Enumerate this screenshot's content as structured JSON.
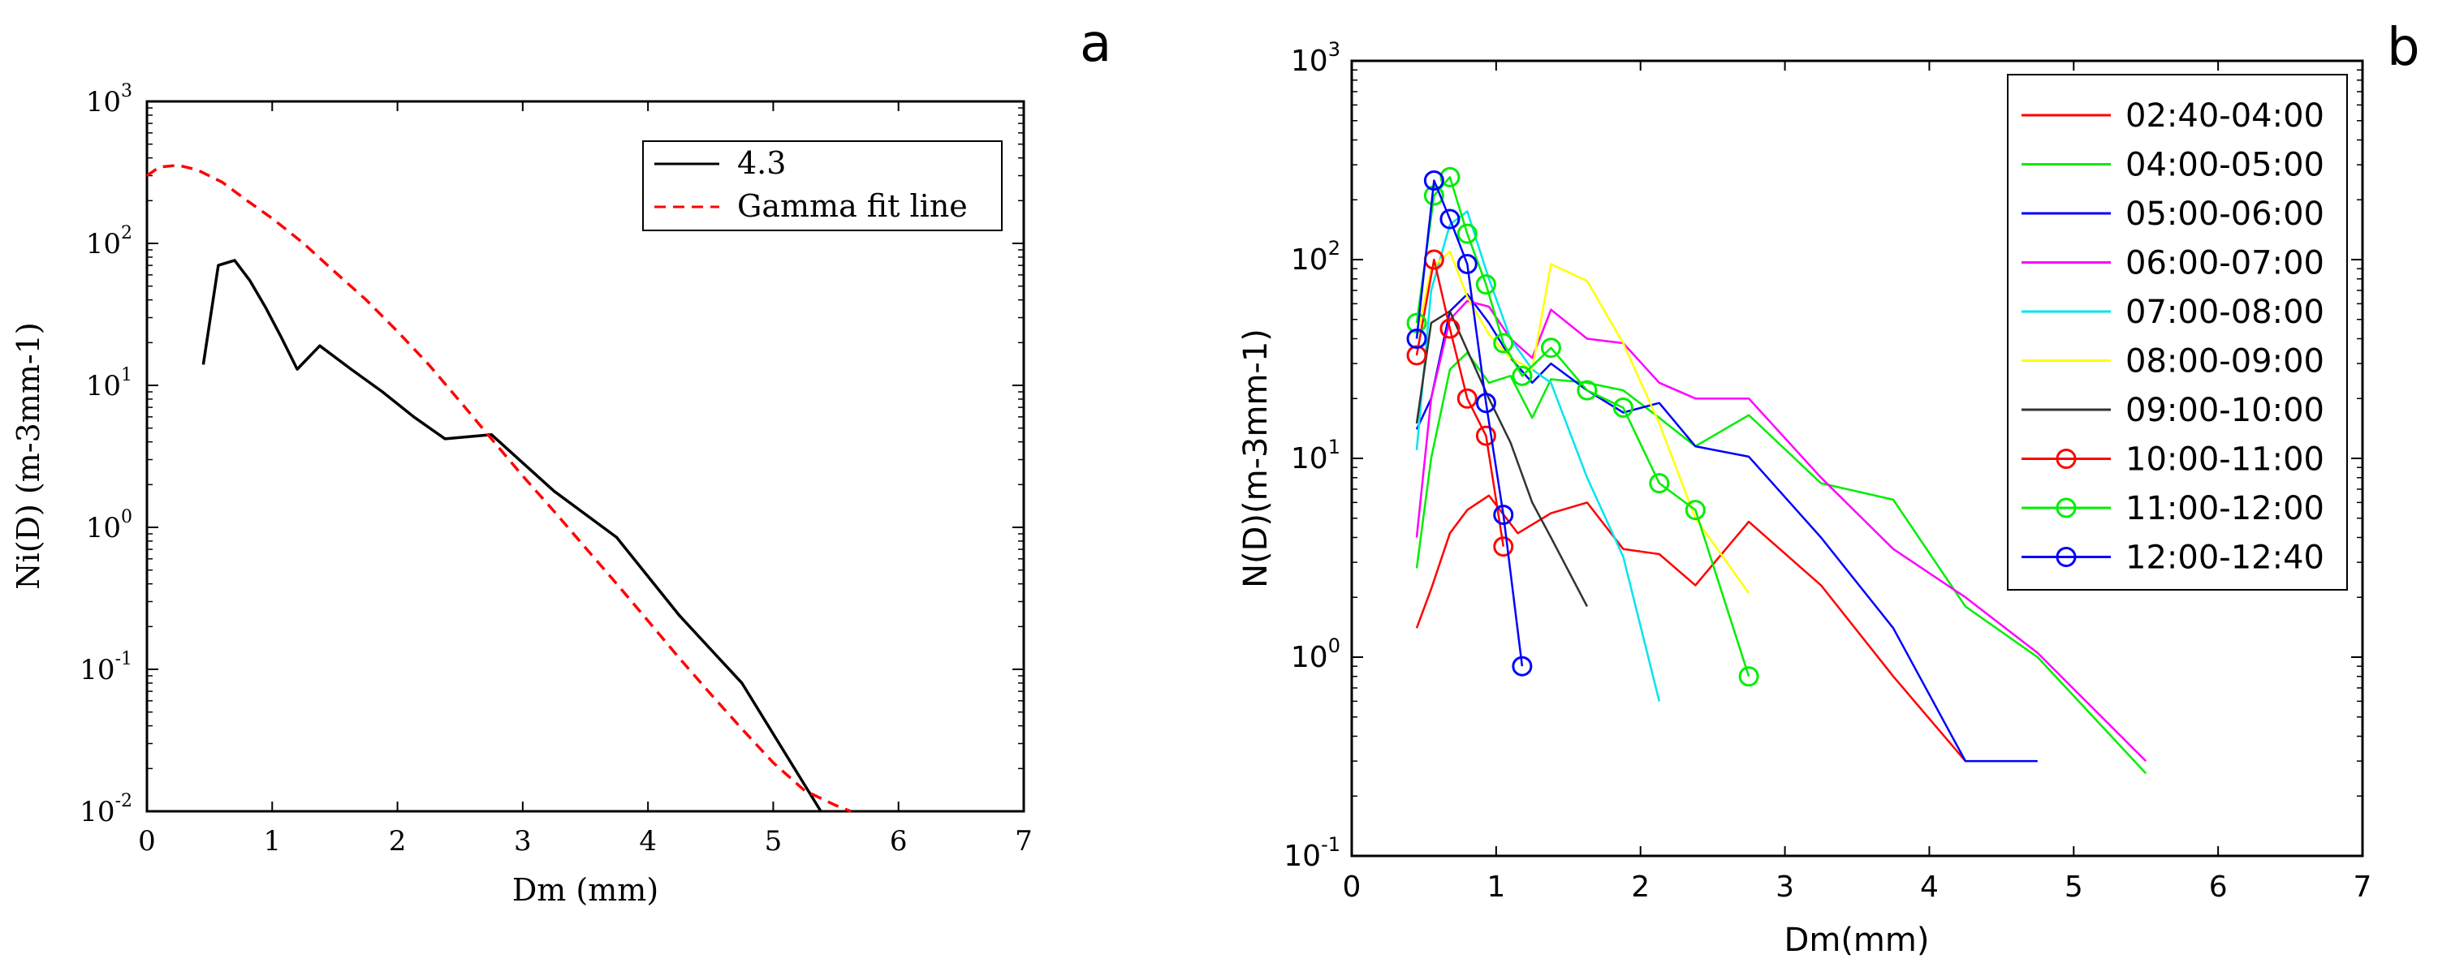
{
  "chart_data": [
    {
      "type": "line",
      "panel_label": "a",
      "title": "",
      "xlabel": "Dm (mm)",
      "ylabel": "Ni(D) (m-3mm-1)",
      "xlim": [
        0,
        7
      ],
      "ylim": [
        0.01,
        1000
      ],
      "yscale": "log",
      "x_ticks": [
        "0",
        "1",
        "2",
        "3",
        "4",
        "5",
        "6",
        "7"
      ],
      "y_ticks": [
        {
          "base": "10",
          "exp": "-2"
        },
        {
          "base": "10",
          "exp": "-1"
        },
        {
          "base": "10",
          "exp": "0"
        },
        {
          "base": "10",
          "exp": "1"
        },
        {
          "base": "10",
          "exp": "2"
        },
        {
          "base": "10",
          "exp": "3"
        }
      ],
      "legend_position": "top-right",
      "series": [
        {
          "name": "4.3",
          "color": "#000000",
          "style": "solid",
          "x": [
            0.45,
            0.57,
            0.7,
            0.82,
            0.95,
            1.07,
            1.2,
            1.38,
            1.63,
            1.88,
            2.13,
            2.38,
            2.75,
            3.25,
            3.75,
            4.25,
            4.75,
            5.38
          ],
          "y": [
            14,
            70,
            76,
            55,
            35,
            22,
            13,
            19,
            13,
            9,
            6,
            4.2,
            4.5,
            1.8,
            0.85,
            0.24,
            0.08,
            0.01
          ]
        },
        {
          "name": "Gamma fit line",
          "color": "#ff0000",
          "style": "dashed",
          "x": [
            0,
            0.1,
            0.25,
            0.4,
            0.6,
            0.8,
            1.0,
            1.25,
            1.5,
            1.75,
            2.0,
            2.25,
            2.5,
            2.75,
            3.0,
            3.25,
            3.5,
            3.75,
            4.0,
            4.25,
            4.5,
            4.75,
            5.0,
            5.25,
            5.5,
            5.62
          ],
          "y": [
            300,
            345,
            355,
            330,
            270,
            200,
            150,
            100,
            63,
            40,
            24,
            14,
            7.7,
            4.2,
            2.3,
            1.3,
            0.72,
            0.4,
            0.22,
            0.12,
            0.067,
            0.038,
            0.022,
            0.014,
            0.011,
            0.01
          ]
        }
      ]
    },
    {
      "type": "line",
      "panel_label": "b",
      "title": "",
      "xlabel": "Dm(mm)",
      "ylabel": "N(D)(m-3mm-1)",
      "xlim": [
        0,
        7
      ],
      "ylim": [
        0.1,
        1000
      ],
      "yscale": "log",
      "x_ticks": [
        "0",
        "1",
        "2",
        "3",
        "4",
        "5",
        "6",
        "7"
      ],
      "y_ticks": [
        {
          "base": "10",
          "exp": "-1"
        },
        {
          "base": "10",
          "exp": "0"
        },
        {
          "base": "10",
          "exp": "1"
        },
        {
          "base": "10",
          "exp": "2"
        },
        {
          "base": "10",
          "exp": "3"
        }
      ],
      "legend_position": "top-right",
      "series": [
        {
          "name": "02:40-04:00",
          "color": "#ff0000",
          "marker": "none",
          "x": [
            0.45,
            0.55,
            0.68,
            0.8,
            0.95,
            1.15,
            1.38,
            1.63,
            1.88,
            2.13,
            2.38,
            2.75,
            3.25,
            3.75,
            4.25
          ],
          "y": [
            1.4,
            2.2,
            4.2,
            5.5,
            6.5,
            4.2,
            5.3,
            6,
            3.5,
            3.3,
            2.3,
            4.8,
            2.3,
            0.8,
            0.3
          ]
        },
        {
          "name": "04:00-05:00",
          "color": "#00ee00",
          "marker": "none",
          "x": [
            0.45,
            0.55,
            0.68,
            0.8,
            0.95,
            1.1,
            1.25,
            1.38,
            1.63,
            1.88,
            2.13,
            2.38,
            2.75,
            3.25,
            3.75,
            4.25,
            4.75,
            5.5
          ],
          "y": [
            2.8,
            10,
            28,
            34,
            24,
            26,
            16,
            25,
            24,
            22,
            16,
            11.5,
            16.5,
            7.5,
            6.2,
            1.8,
            1.0,
            0.26
          ]
        },
        {
          "name": "05:00-06:00",
          "color": "#0000ff",
          "marker": "none",
          "x": [
            0.45,
            0.55,
            0.68,
            0.8,
            0.95,
            1.1,
            1.25,
            1.38,
            1.63,
            1.88,
            2.13,
            2.38,
            2.75,
            3.25,
            3.75,
            4.25,
            4.75
          ],
          "y": [
            14,
            20,
            55,
            67,
            48,
            32,
            24,
            30,
            22,
            17,
            19,
            11.5,
            10.2,
            4,
            1.4,
            0.3,
            0.3
          ]
        },
        {
          "name": "06:00-07:00",
          "color": "#ff00ff",
          "marker": "none",
          "x": [
            0.45,
            0.55,
            0.68,
            0.8,
            0.95,
            1.1,
            1.25,
            1.38,
            1.63,
            1.88,
            2.13,
            2.38,
            2.75,
            3.25,
            3.75,
            4.25,
            4.75,
            5.5
          ],
          "y": [
            4,
            20,
            50,
            62,
            58,
            40,
            32,
            56,
            40,
            38,
            24,
            20,
            20,
            8,
            3.5,
            2,
            1.05,
            0.3
          ]
        },
        {
          "name": "07:00-08:00",
          "color": "#00e5ee",
          "marker": "none",
          "x": [
            0.45,
            0.55,
            0.68,
            0.8,
            0.95,
            1.1,
            1.25,
            1.38,
            1.63,
            1.88,
            2.13
          ],
          "y": [
            11,
            70,
            150,
            175,
            80,
            40,
            28,
            24,
            8,
            3.2,
            0.6
          ]
        },
        {
          "name": "08:00-09:00",
          "color": "#ffff00",
          "marker": "none",
          "x": [
            0.45,
            0.55,
            0.68,
            0.8,
            0.95,
            1.1,
            1.25,
            1.38,
            1.63,
            1.88,
            2.13,
            2.38,
            2.75
          ],
          "y": [
            40,
            90,
            110,
            65,
            42,
            32,
            28,
            95,
            78,
            38,
            15,
            5,
            2.1
          ]
        },
        {
          "name": "09:00-10:00",
          "color": "#333333",
          "marker": "none",
          "x": [
            0.45,
            0.55,
            0.68,
            0.8,
            0.95,
            1.1,
            1.25,
            1.38,
            1.63
          ],
          "y": [
            15,
            48,
            55,
            35,
            20,
            12,
            6,
            4,
            1.8
          ]
        },
        {
          "name": "10:00-11:00",
          "color": "#ff0000",
          "marker": "circle",
          "x": [
            0.45,
            0.57,
            0.68,
            0.8,
            0.93,
            1.05
          ],
          "y": [
            33,
            100,
            45,
            20,
            13,
            3.6
          ]
        },
        {
          "name": "11:00-12:00",
          "color": "#00ee00",
          "marker": "circle",
          "x": [
            0.45,
            0.57,
            0.68,
            0.8,
            0.93,
            1.05,
            1.18,
            1.38,
            1.63,
            1.88,
            2.13,
            2.38,
            2.75
          ],
          "y": [
            48,
            210,
            260,
            135,
            75,
            38,
            26,
            36,
            22,
            18,
            7.5,
            5.5,
            0.8
          ]
        },
        {
          "name": "12:00-12:40",
          "color": "#0000ff",
          "marker": "circle",
          "x": [
            0.45,
            0.57,
            0.68,
            0.8,
            0.93,
            1.05,
            1.18
          ],
          "y": [
            40,
            250,
            160,
            95,
            19,
            5.2,
            0.9
          ]
        }
      ]
    }
  ]
}
